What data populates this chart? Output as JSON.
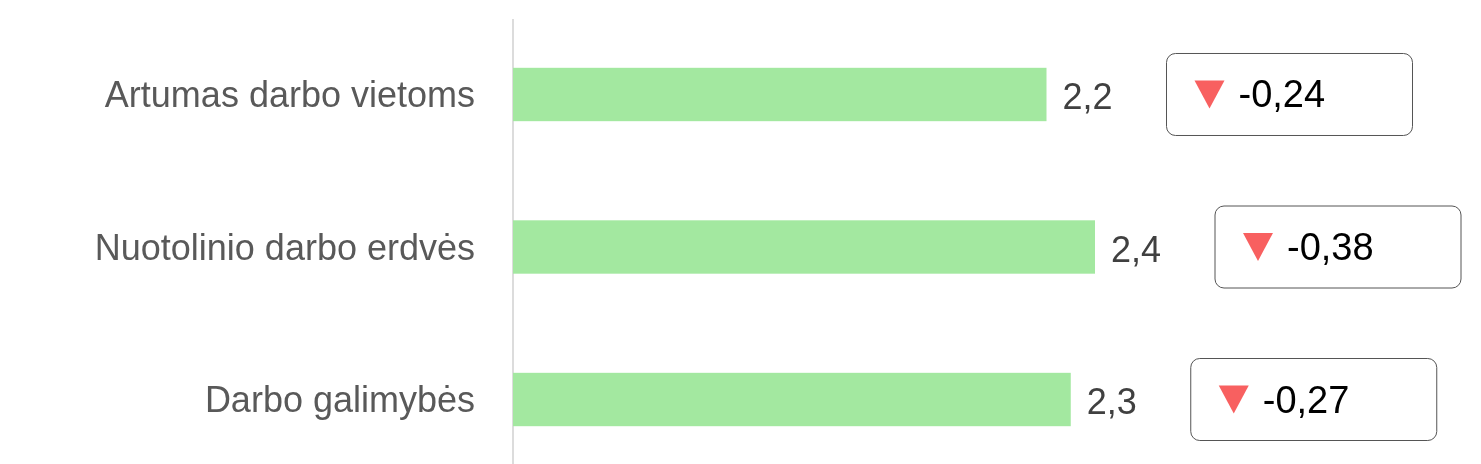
{
  "chart_data": {
    "type": "bar",
    "orientation": "horizontal",
    "categories": [
      "Artumas darbo vietoms",
      "Nuotolinio darbo erdvės",
      "Darbo galimybės"
    ],
    "values": [
      2.2,
      2.4,
      2.3
    ],
    "color": "#a3e8a0",
    "value_labels": [
      "2,2",
      "2,4",
      "2,3"
    ],
    "annotations": [
      "-0,24",
      "-0,38",
      "-0,27"
    ]
  }
}
